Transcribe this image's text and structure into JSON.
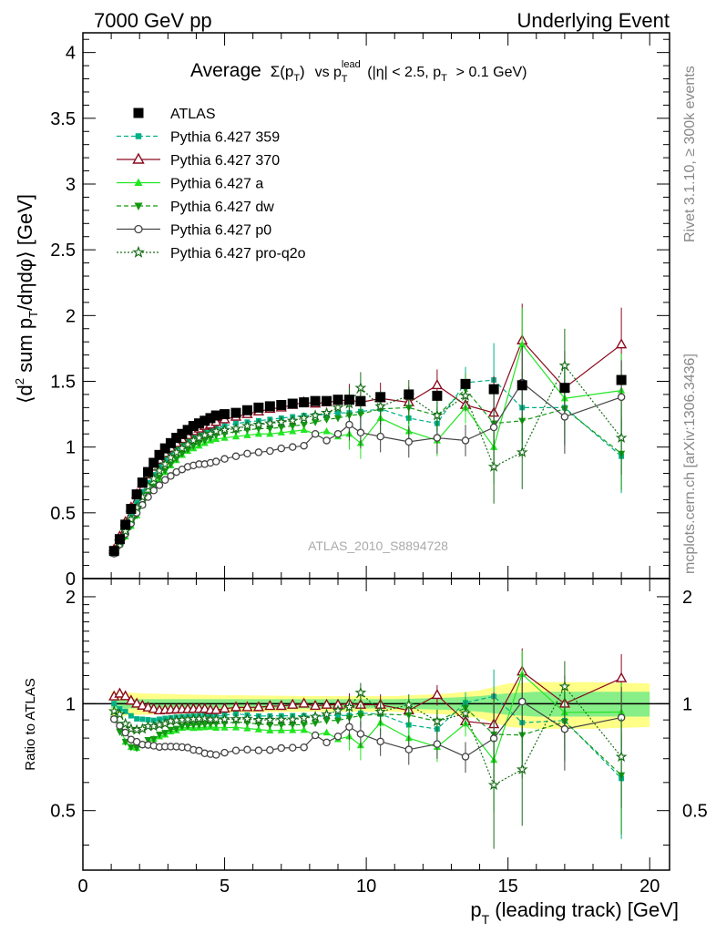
{
  "header": {
    "left": "7000 GeV pp",
    "right": "Underlying Event"
  },
  "side_labels": {
    "rivet": "Rivet 3.1.10, ≥ 300k events",
    "mcplots": "mcplots.cern.ch [arXiv:1306.3436]"
  },
  "watermark": "ATLAS_2010_S8894728",
  "colors": {
    "atlas": "#000000",
    "p359": "#00b088",
    "p370": "#8b0a1e",
    "pa": "#22e622",
    "pdw": "#119911",
    "pp0": "#444444",
    "pq2o": "#1a6e1a",
    "band_yellow": "#ffff88",
    "band_green": "#88ee88"
  },
  "chart_data": [
    {
      "type": "line",
      "title_parts": {
        "average": "Average",
        "sigma": "Σ(p",
        "sigma_sub": "T",
        "sigma_close": ")",
        "vs": "vs p",
        "lead_sup": "lead",
        "lead_sub": "T",
        "cuts": "(|η| < 2.5, p",
        "cuts_sub": "T",
        "cuts_end": "> 0.1 GeV)"
      },
      "ylabel": "⟨d² sum p_T/dηdφ⟩ [GeV]",
      "ylabel_parts": {
        "open": "⟨d",
        "sup": "2",
        "mid": "sum p",
        "sub": "T",
        "close": "/dηdφ⟩ [GeV]"
      },
      "xlim": [
        0,
        20.7
      ],
      "ylim": [
        0,
        4.15
      ],
      "yticks": [
        0,
        0.5,
        1,
        1.5,
        2,
        2.5,
        3,
        3.5,
        4
      ],
      "ytick_labels": [
        "0",
        "0.5",
        "1",
        "1.5",
        "2",
        "2.5",
        "3",
        "3.5",
        "4"
      ],
      "legend_position": "top-left",
      "series": [
        {
          "name": "ATLAS",
          "key": "atlas",
          "marker": "filled-square",
          "line": "none",
          "x": [
            1.1,
            1.3,
            1.5,
            1.7,
            1.9,
            2.1,
            2.3,
            2.5,
            2.7,
            2.9,
            3.1,
            3.3,
            3.5,
            3.7,
            3.9,
            4.1,
            4.3,
            4.5,
            4.7,
            5.0,
            5.4,
            5.8,
            6.2,
            6.6,
            7.0,
            7.4,
            7.8,
            8.2,
            8.6,
            9.0,
            9.4,
            9.8,
            10.5,
            11.5,
            12.5,
            13.5,
            14.5,
            15.5,
            17.0,
            19.0
          ],
          "y": [
            0.21,
            0.3,
            0.41,
            0.53,
            0.64,
            0.73,
            0.81,
            0.88,
            0.94,
            0.99,
            1.03,
            1.07,
            1.1,
            1.13,
            1.16,
            1.18,
            1.2,
            1.22,
            1.24,
            1.25,
            1.26,
            1.28,
            1.3,
            1.31,
            1.32,
            1.33,
            1.34,
            1.35,
            1.35,
            1.36,
            1.36,
            1.35,
            1.38,
            1.4,
            1.39,
            1.48,
            1.44,
            1.47,
            1.45,
            1.51
          ]
        },
        {
          "name": "Pythia 6.427 359",
          "key": "p359",
          "marker": "small-filled-square",
          "line": "dashed",
          "x": [
            1.1,
            1.3,
            1.5,
            1.7,
            1.9,
            2.1,
            2.3,
            2.5,
            2.7,
            2.9,
            3.1,
            3.3,
            3.5,
            3.7,
            3.9,
            4.1,
            4.3,
            4.5,
            4.7,
            5.0,
            5.4,
            5.8,
            6.2,
            6.6,
            7.0,
            7.4,
            7.8,
            8.2,
            8.6,
            9.0,
            9.4,
            9.8,
            10.5,
            11.5,
            12.5,
            13.5,
            14.5,
            15.5,
            17.0,
            19.0
          ],
          "y": [
            0.21,
            0.29,
            0.39,
            0.49,
            0.58,
            0.66,
            0.73,
            0.79,
            0.85,
            0.9,
            0.94,
            0.98,
            1.01,
            1.04,
            1.07,
            1.09,
            1.11,
            1.13,
            1.14,
            1.16,
            1.18,
            1.19,
            1.2,
            1.21,
            1.22,
            1.23,
            1.24,
            1.24,
            1.25,
            1.26,
            1.26,
            1.27,
            1.29,
            1.22,
            1.18,
            1.49,
            1.51,
            1.3,
            1.3,
            0.93
          ]
        },
        {
          "name": "Pythia 6.427 370",
          "key": "p370",
          "marker": "open-triangle",
          "line": "solid",
          "x": [
            1.1,
            1.3,
            1.5,
            1.7,
            1.9,
            2.1,
            2.3,
            2.5,
            2.7,
            2.9,
            3.1,
            3.3,
            3.5,
            3.7,
            3.9,
            4.1,
            4.3,
            4.5,
            4.7,
            5.0,
            5.4,
            5.8,
            6.2,
            6.6,
            7.0,
            7.4,
            7.8,
            8.2,
            8.6,
            9.0,
            9.4,
            9.8,
            10.5,
            11.5,
            12.5,
            13.5,
            14.5,
            15.5,
            17.0,
            19.0
          ],
          "y": [
            0.22,
            0.32,
            0.43,
            0.54,
            0.64,
            0.72,
            0.79,
            0.85,
            0.9,
            0.95,
            0.99,
            1.03,
            1.06,
            1.09,
            1.12,
            1.14,
            1.16,
            1.17,
            1.19,
            1.21,
            1.23,
            1.25,
            1.27,
            1.29,
            1.3,
            1.32,
            1.34,
            1.33,
            1.34,
            1.35,
            1.36,
            1.34,
            1.37,
            1.34,
            1.47,
            1.32,
            1.26,
            1.81,
            1.45,
            1.78
          ]
        },
        {
          "name": "Pythia 6.427 a",
          "key": "pa",
          "marker": "filled-triangle",
          "line": "solid",
          "x": [
            1.1,
            1.3,
            1.5,
            1.7,
            1.9,
            2.1,
            2.3,
            2.5,
            2.7,
            2.9,
            3.1,
            3.3,
            3.5,
            3.7,
            3.9,
            4.1,
            4.3,
            4.5,
            4.7,
            5.0,
            5.4,
            5.8,
            6.2,
            6.6,
            7.0,
            7.4,
            7.8,
            8.2,
            8.6,
            9.0,
            9.4,
            9.8,
            10.5,
            11.5,
            12.5,
            13.5,
            14.5,
            15.5,
            17.0,
            19.0
          ],
          "y": [
            0.2,
            0.26,
            0.32,
            0.4,
            0.48,
            0.56,
            0.63,
            0.7,
            0.76,
            0.81,
            0.86,
            0.9,
            0.94,
            0.97,
            0.99,
            1.01,
            1.03,
            1.05,
            1.06,
            1.07,
            1.08,
            1.09,
            1.1,
            1.1,
            1.11,
            1.12,
            1.13,
            1.1,
            1.12,
            1.08,
            1.1,
            1.03,
            1.22,
            1.12,
            1.05,
            1.3,
            1.0,
            1.78,
            1.37,
            1.43
          ]
        },
        {
          "name": "Pythia 6.427 dw",
          "key": "pdw",
          "marker": "filled-triangle-down",
          "line": "dashed",
          "x": [
            1.1,
            1.3,
            1.5,
            1.7,
            1.9,
            2.1,
            2.3,
            2.5,
            2.7,
            2.9,
            3.1,
            3.3,
            3.5,
            3.7,
            3.9,
            4.1,
            4.3,
            4.5,
            4.7,
            5.0,
            5.4,
            5.8,
            6.2,
            6.6,
            7.0,
            7.4,
            7.8,
            8.2,
            8.6,
            9.0,
            9.4,
            9.8,
            10.5,
            11.5,
            12.5,
            13.5,
            14.5,
            15.5,
            17.0,
            19.0
          ],
          "y": [
            0.19,
            0.25,
            0.32,
            0.4,
            0.48,
            0.56,
            0.64,
            0.7,
            0.77,
            0.82,
            0.87,
            0.91,
            0.95,
            0.98,
            1.01,
            1.03,
            1.05,
            1.07,
            1.09,
            1.1,
            1.12,
            1.13,
            1.14,
            1.14,
            1.15,
            1.16,
            1.17,
            1.19,
            1.21,
            1.22,
            1.24,
            1.25,
            1.29,
            1.3,
            1.24,
            1.44,
            1.18,
            1.2,
            1.29,
            0.95
          ]
        },
        {
          "name": "Pythia 6.427 p0",
          "key": "pp0",
          "marker": "open-circle",
          "line": "solid",
          "x": [
            1.1,
            1.3,
            1.5,
            1.7,
            1.9,
            2.1,
            2.3,
            2.5,
            2.7,
            2.9,
            3.1,
            3.3,
            3.5,
            3.7,
            3.9,
            4.1,
            4.3,
            4.5,
            4.7,
            5.0,
            5.4,
            5.8,
            6.2,
            6.6,
            7.0,
            7.4,
            7.8,
            8.2,
            8.6,
            9.0,
            9.4,
            9.8,
            10.5,
            11.5,
            12.5,
            13.5,
            14.5,
            15.5,
            17.0,
            19.0
          ],
          "y": [
            0.19,
            0.26,
            0.34,
            0.42,
            0.5,
            0.56,
            0.62,
            0.67,
            0.71,
            0.75,
            0.78,
            0.81,
            0.83,
            0.85,
            0.86,
            0.87,
            0.87,
            0.88,
            0.89,
            0.91,
            0.93,
            0.95,
            0.96,
            0.97,
            0.99,
            1.0,
            1.01,
            1.1,
            1.05,
            1.1,
            1.17,
            1.11,
            1.08,
            1.04,
            1.07,
            1.05,
            1.15,
            1.49,
            1.23,
            1.38
          ]
        },
        {
          "name": "Pythia 6.427 pro-q2o",
          "key": "pq2o",
          "marker": "open-star",
          "line": "dotted",
          "x": [
            1.1,
            1.3,
            1.5,
            1.7,
            1.9,
            2.1,
            2.3,
            2.5,
            2.7,
            2.9,
            3.1,
            3.3,
            3.5,
            3.7,
            3.9,
            4.1,
            4.3,
            4.5,
            4.7,
            5.0,
            5.4,
            5.8,
            6.2,
            6.6,
            7.0,
            7.4,
            7.8,
            8.2,
            8.6,
            9.0,
            9.4,
            9.8,
            10.5,
            11.5,
            12.5,
            13.5,
            14.5,
            15.5,
            17.0,
            19.0
          ],
          "y": [
            0.2,
            0.28,
            0.36,
            0.45,
            0.54,
            0.62,
            0.7,
            0.76,
            0.82,
            0.87,
            0.92,
            0.96,
            0.99,
            1.02,
            1.05,
            1.07,
            1.09,
            1.1,
            1.12,
            1.13,
            1.14,
            1.16,
            1.17,
            1.18,
            1.19,
            1.2,
            1.22,
            1.24,
            1.26,
            1.3,
            1.33,
            1.45,
            1.31,
            1.39,
            1.24,
            1.39,
            0.85,
            0.96,
            1.62,
            1.07
          ]
        }
      ]
    },
    {
      "type": "line",
      "ylabel": "Ratio to ATLAS",
      "xlabel": "p_T (leading track) [GeV]",
      "xlabel_parts": {
        "p": "p",
        "sub": "T",
        "rest": "(leading track) [GeV]"
      },
      "xlim": [
        0,
        20.7
      ],
      "ylim": [
        0.34,
        2.25
      ],
      "xticks": [
        0,
        5,
        10,
        15,
        20
      ],
      "xtick_labels": [
        "0",
        "5",
        "10",
        "15",
        "20"
      ],
      "yticks": [
        0.5,
        1,
        2
      ],
      "ytick_labels": [
        "0.5",
        "1",
        "2"
      ],
      "bands": {
        "x": [
          1.0,
          2.0,
          4.0,
          8.0,
          11.0,
          13.0,
          14.0,
          15.0,
          16.0,
          18.0,
          20.0
        ],
        "yellow_half": [
          0.08,
          0.07,
          0.06,
          0.05,
          0.05,
          0.07,
          0.09,
          0.14,
          0.15,
          0.15,
          0.14
        ],
        "green_half": [
          0.03,
          0.03,
          0.03,
          0.03,
          0.03,
          0.04,
          0.05,
          0.07,
          0.08,
          0.08,
          0.08
        ]
      }
    }
  ]
}
